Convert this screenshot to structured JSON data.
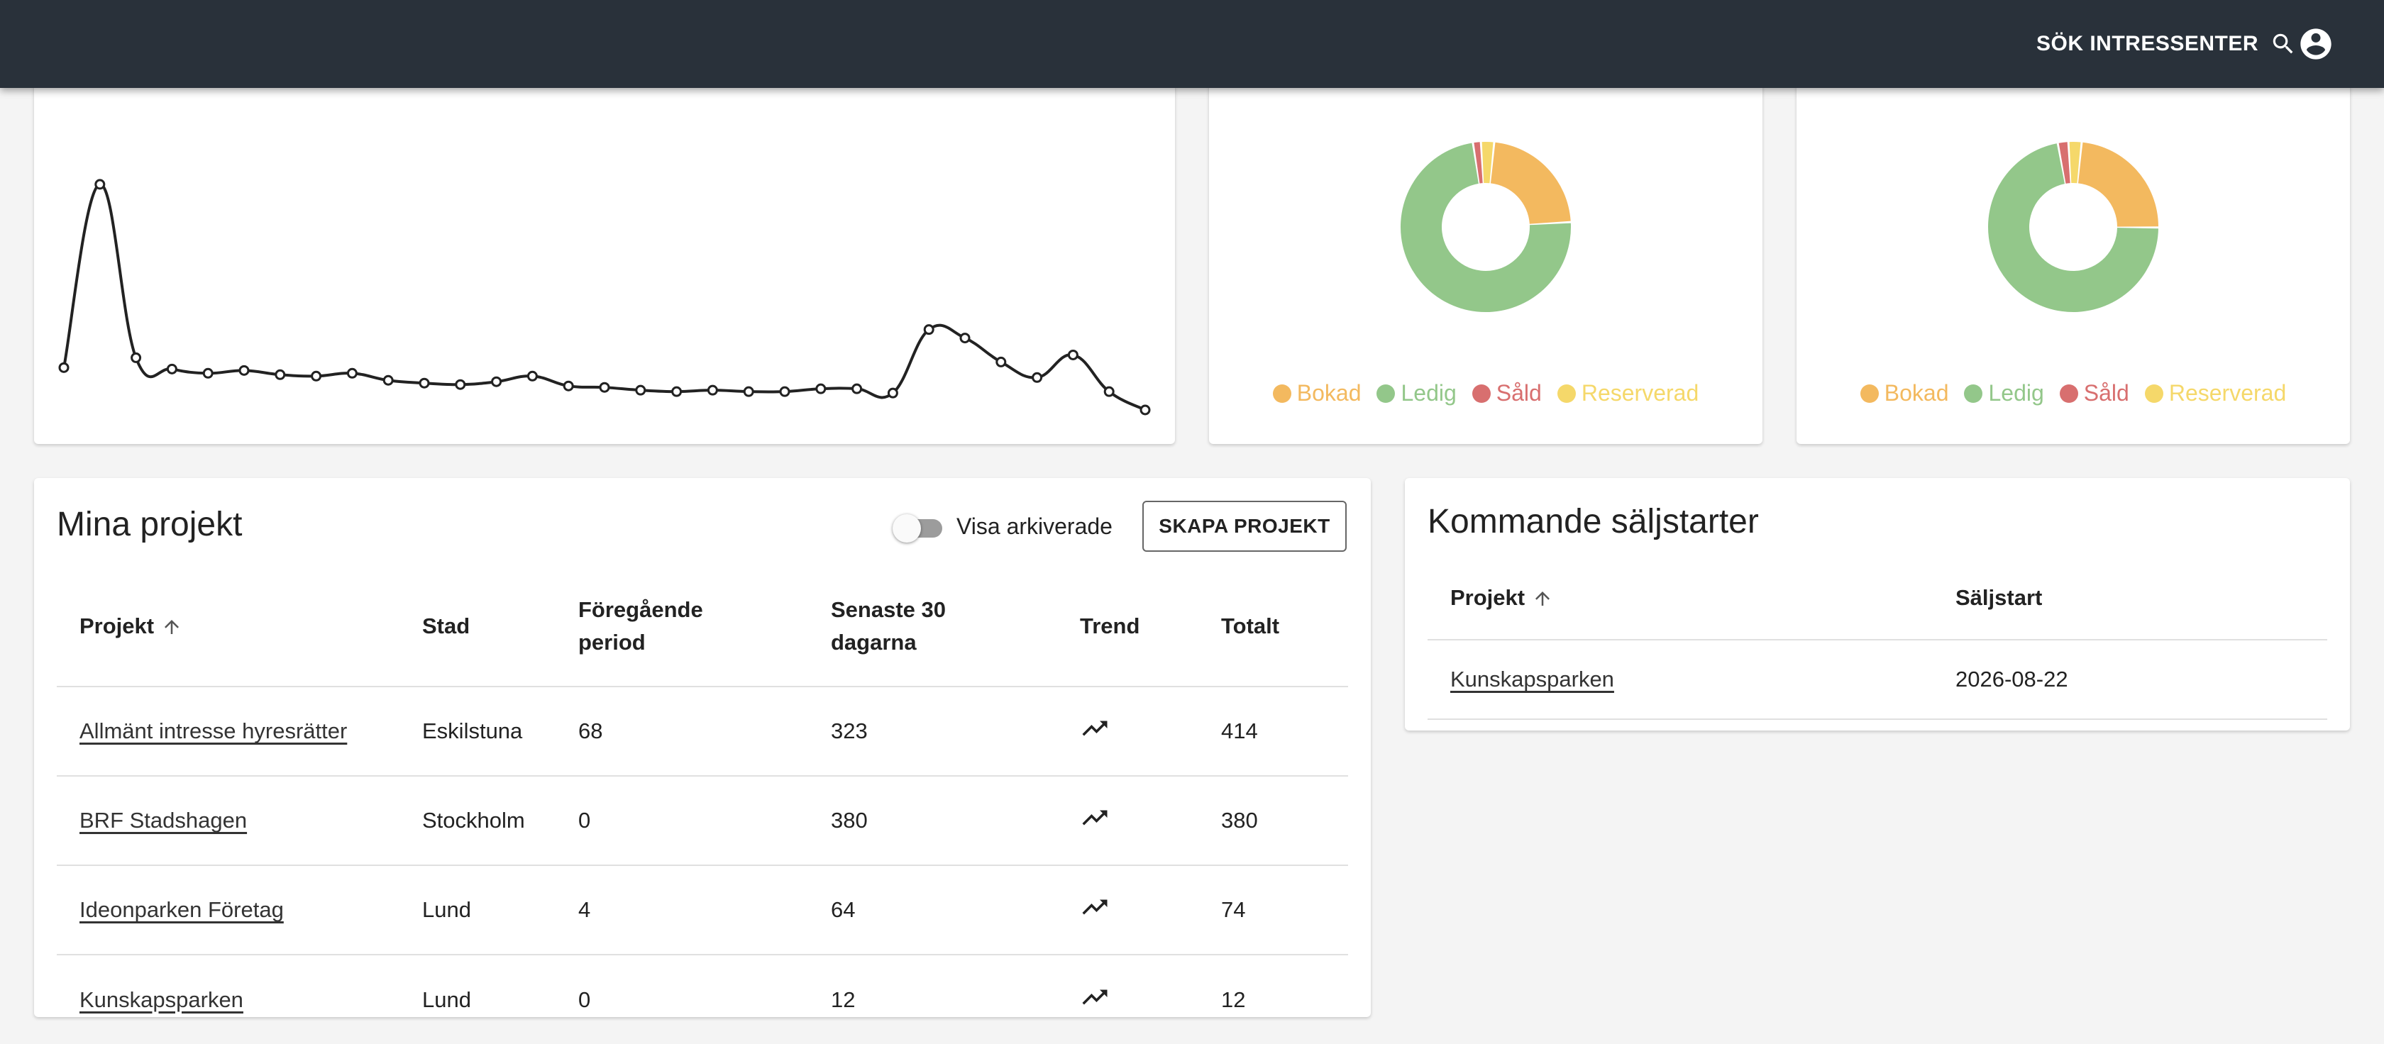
{
  "header": {
    "search_label": "SÖK INTRESSENTER",
    "search_icon": "search-icon",
    "account_icon": "account-circle-icon"
  },
  "chart_data": [
    {
      "type": "line",
      "title": "",
      "xlabel": "",
      "ylabel": "",
      "grid": false,
      "x": [
        1,
        2,
        3,
        4,
        5,
        6,
        7,
        8,
        9,
        10,
        11,
        12,
        13,
        14,
        15,
        16,
        17,
        18,
        19,
        20,
        21,
        22,
        23,
        24,
        25,
        26,
        27,
        28,
        29,
        30,
        31
      ],
      "values": [
        30,
        160,
        37,
        29,
        26,
        28,
        25,
        24,
        26,
        21,
        19,
        18,
        20,
        24,
        17,
        16,
        14,
        13,
        14,
        13,
        13,
        15,
        15,
        12,
        57,
        51,
        34,
        23,
        39,
        13,
        0
      ],
      "ylim": [
        0,
        170
      ],
      "color": "#222222"
    },
    {
      "type": "pie",
      "donut": true,
      "labels": [
        "Bokad",
        "Ledig",
        "Såld",
        "Reserverad"
      ],
      "values": [
        22.5,
        73.5,
        1.5,
        2.5
      ],
      "colors": [
        "#f3b95f",
        "#93c78a",
        "#d86f6f",
        "#f5d86a"
      ]
    },
    {
      "type": "pie",
      "donut": true,
      "labels": [
        "Bokad",
        "Ledig",
        "Såld",
        "Reserverad"
      ],
      "values": [
        23.5,
        72.0,
        2.0,
        2.5
      ],
      "colors": [
        "#f3b95f",
        "#93c78a",
        "#d86f6f",
        "#f5d86a"
      ]
    }
  ],
  "legend": [
    {
      "label": "Bokad",
      "color": "#f3b95f"
    },
    {
      "label": "Ledig",
      "color": "#93c78a"
    },
    {
      "label": "Såld",
      "color": "#d86f6f"
    },
    {
      "label": "Reserverad",
      "color": "#f5d86a"
    }
  ],
  "projects": {
    "title": "Mina projekt",
    "toggle_label": "Visa arkiverade",
    "toggle_on": false,
    "create_button": "SKAPA PROJEKT",
    "columns": {
      "projekt": "Projekt",
      "stad": "Stad",
      "prev_line1": "Föregående",
      "prev_line2": "period",
      "last30_line1": "Senaste 30",
      "last30_line2": "dagarna",
      "trend": "Trend",
      "total": "Totalt"
    },
    "rows": [
      {
        "name": "Allmänt intresse hyresrätter",
        "city": "Eskilstuna",
        "prev": "68",
        "last30": "323",
        "trend_icon": "trending-up-icon",
        "total": "414"
      },
      {
        "name": "BRF Stadshagen",
        "city": "Stockholm",
        "prev": "0",
        "last30": "380",
        "trend_icon": "trending-up-icon",
        "total": "380"
      },
      {
        "name": "Ideonparken Företag",
        "city": "Lund",
        "prev": "4",
        "last30": "64",
        "trend_icon": "trending-up-icon",
        "total": "74"
      },
      {
        "name": "Kunskapsparken",
        "city": "Lund",
        "prev": "0",
        "last30": "12",
        "trend_icon": "trending-up-icon",
        "total": "12"
      }
    ]
  },
  "upcoming": {
    "title": "Kommande säljstarter",
    "columns": {
      "projekt": "Projekt",
      "start": "Säljstart"
    },
    "rows": [
      {
        "name": "Kunskapsparken",
        "date": "2026-08-22"
      }
    ]
  }
}
